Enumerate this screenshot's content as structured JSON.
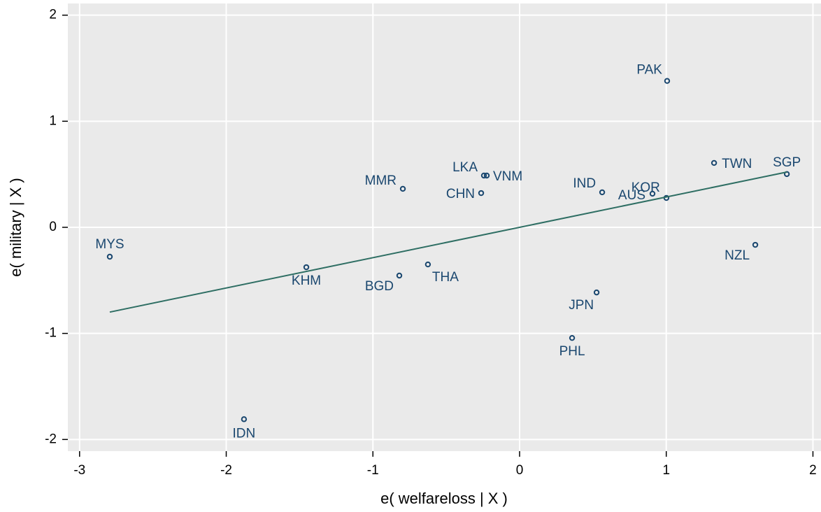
{
  "chart_data": {
    "type": "scatter",
    "x_label": "e( welfareloss | X )",
    "y_label": "e( military | X )",
    "xlim": [
      -3.08,
      2.055
    ],
    "ylim": [
      -2.11,
      2.11
    ],
    "xticks": [
      -3,
      -2,
      -1,
      0,
      1,
      2
    ],
    "yticks": [
      -2,
      -1,
      0,
      1,
      2
    ],
    "grid": true,
    "series": [
      {
        "color": "#1a476f",
        "labels": [
          "MYS",
          "KHM",
          "IDN",
          "BGD",
          "THA",
          "MMR",
          "CHN",
          "LKA",
          "VNM",
          "PAK",
          "TWN",
          "SGP",
          "IND",
          "AUS",
          "KOR",
          "NZL",
          "JPN",
          "PHL"
        ],
        "x": [
          -2.794,
          -1.454,
          -1.879,
          -0.82,
          -0.625,
          -0.796,
          -0.262,
          -0.243,
          -0.224,
          1.006,
          1.326,
          1.822,
          0.563,
          0.906,
          1.001,
          1.607,
          0.525,
          0.358
        ],
        "values": [
          -0.277,
          -0.376,
          -1.809,
          -0.455,
          -0.35,
          0.363,
          0.323,
          0.488,
          0.488,
          1.38,
          0.607,
          0.502,
          0.33,
          0.317,
          0.277,
          -0.165,
          -0.614,
          -1.043
        ]
      },
      {
        "type": "line",
        "color": "#2e6e63",
        "x": [
          -2.794,
          1.822
        ],
        "values": [
          -0.799,
          0.521
        ]
      }
    ]
  }
}
